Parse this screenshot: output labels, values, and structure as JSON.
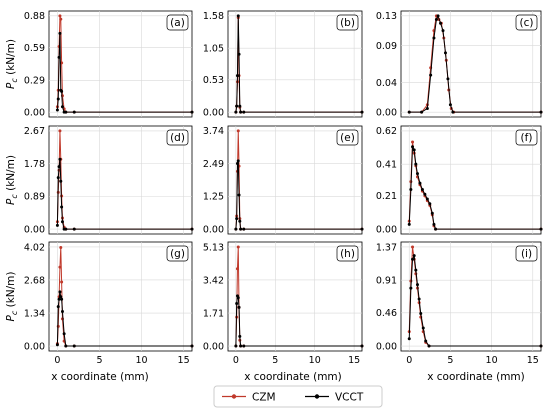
{
  "chart_data": {
    "type": "line",
    "layout": "3x3 grid of line charts with shared x axis per column",
    "xlabel": "x coordinate (mm)",
    "ylabel": "P_c (kN/m)",
    "xlim": [
      -1,
      16
    ],
    "xticks": [
      0,
      5,
      10,
      15
    ],
    "grid": true,
    "legend": {
      "placement": "bottom-center",
      "entries": [
        {
          "name": "CZM",
          "color": "#c0392b",
          "marker": "circle"
        },
        {
          "name": "VCCT",
          "color": "#000000",
          "marker": "circle"
        }
      ]
    },
    "panels": [
      {
        "label": "(a)",
        "ylim": [
          0,
          0.88
        ],
        "yticks": [
          "0.88",
          "0.59",
          "0.29",
          "0.00"
        ],
        "series": [
          {
            "name": "CZM",
            "x": [
              0.0,
              0.1,
              0.2,
              0.3,
              0.4,
              0.5,
              0.6,
              0.8,
              1.0,
              2.0,
              16.0
            ],
            "y": [
              0.05,
              0.2,
              0.6,
              0.88,
              0.85,
              0.45,
              0.15,
              0.03,
              0.0,
              0.0,
              0.0
            ]
          },
          {
            "name": "VCCT",
            "x": [
              0.0,
              0.1,
              0.2,
              0.3,
              0.4,
              0.5,
              0.6,
              0.8,
              1.0,
              2.0,
              16.0
            ],
            "y": [
              0.02,
              0.12,
              0.5,
              0.72,
              0.2,
              0.19,
              0.05,
              0.0,
              0.0,
              0.0,
              0.0
            ]
          }
        ]
      },
      {
        "label": "(b)",
        "ylim": [
          0,
          1.58
        ],
        "yticks": [
          "1.58",
          "1.05",
          "0.53",
          "0.00"
        ],
        "series": [
          {
            "name": "CZM",
            "x": [
              0.0,
              0.1,
              0.2,
              0.3,
              0.4,
              0.5,
              0.6,
              1.0,
              16.0
            ],
            "y": [
              0.0,
              0.1,
              0.5,
              1.55,
              0.6,
              0.08,
              0.0,
              0.0,
              0.0
            ]
          },
          {
            "name": "VCCT",
            "x": [
              0.0,
              0.1,
              0.2,
              0.3,
              0.4,
              0.5,
              0.6,
              1.0,
              16.0
            ],
            "y": [
              0.0,
              0.1,
              0.6,
              1.58,
              0.95,
              0.1,
              0.0,
              0.0,
              0.0
            ]
          }
        ]
      },
      {
        "label": "(c)",
        "ylim": [
          0,
          0.13
        ],
        "yticks": [
          "0.13",
          "0.09",
          "0.04",
          "0.00"
        ],
        "series": [
          {
            "name": "CZM",
            "x": [
              0.0,
              1.5,
              2.2,
              2.6,
              3.0,
              3.3,
              3.6,
              3.9,
              4.2,
              4.5,
              4.8,
              5.1,
              5.4,
              16.0
            ],
            "y": [
              0.0,
              0.0,
              0.01,
              0.06,
              0.11,
              0.13,
              0.125,
              0.12,
              0.1,
              0.07,
              0.03,
              0.005,
              0.0,
              0.0
            ]
          },
          {
            "name": "VCCT",
            "x": [
              0.0,
              1.5,
              2.2,
              2.6,
              3.0,
              3.3,
              3.5,
              3.8,
              4.1,
              4.4,
              4.7,
              5.0,
              5.3,
              16.0
            ],
            "y": [
              0.0,
              0.0,
              0.005,
              0.05,
              0.1,
              0.125,
              0.13,
              0.12,
              0.11,
              0.08,
              0.045,
              0.01,
              0.0,
              0.0
            ]
          }
        ]
      },
      {
        "label": "(d)",
        "ylim": [
          0,
          2.67
        ],
        "yticks": [
          "2.67",
          "1.78",
          "0.89",
          "0.00"
        ],
        "series": [
          {
            "name": "CZM",
            "x": [
              0.0,
              0.1,
              0.2,
              0.3,
              0.4,
              0.5,
              0.6,
              0.8,
              1.0,
              2.0,
              16.0
            ],
            "y": [
              0.2,
              1.0,
              1.6,
              2.67,
              1.9,
              0.9,
              0.3,
              0.05,
              0.0,
              0.0,
              0.0
            ]
          },
          {
            "name": "VCCT",
            "x": [
              0.0,
              0.1,
              0.2,
              0.3,
              0.4,
              0.5,
              0.6,
              0.8,
              1.0,
              2.0,
              16.0
            ],
            "y": [
              0.1,
              1.4,
              1.7,
              1.9,
              1.3,
              0.6,
              0.2,
              0.0,
              0.0,
              0.0,
              0.0
            ]
          }
        ]
      },
      {
        "label": "(e)",
        "ylim": [
          0,
          3.74
        ],
        "yticks": [
          "3.74",
          "2.49",
          "1.25",
          "0.00"
        ],
        "series": [
          {
            "name": "CZM",
            "x": [
              0.0,
              0.1,
              0.2,
              0.3,
              0.4,
              0.5,
              0.6,
              1.0,
              16.0
            ],
            "y": [
              0.0,
              0.5,
              2.2,
              3.74,
              2.4,
              0.4,
              0.0,
              0.0,
              0.0
            ]
          },
          {
            "name": "VCCT",
            "x": [
              0.0,
              0.1,
              0.2,
              0.3,
              0.4,
              0.5,
              0.6,
              1.0,
              16.0
            ],
            "y": [
              0.0,
              0.4,
              2.5,
              2.6,
              1.3,
              0.3,
              0.0,
              0.0,
              0.0
            ]
          }
        ]
      },
      {
        "label": "(f)",
        "ylim": [
          0,
          0.62
        ],
        "yticks": [
          "0.62",
          "0.41",
          "0.21",
          "0.00"
        ],
        "series": [
          {
            "name": "CZM",
            "x": [
              0.0,
              0.2,
              0.4,
              0.6,
              0.8,
              1.0,
              1.3,
              1.6,
              1.9,
              2.2,
              2.5,
              2.8,
              3.0,
              3.2,
              16.0
            ],
            "y": [
              0.05,
              0.3,
              0.55,
              0.48,
              0.4,
              0.33,
              0.28,
              0.24,
              0.21,
              0.18,
              0.15,
              0.09,
              0.02,
              0.0,
              0.0
            ]
          },
          {
            "name": "VCCT",
            "x": [
              0.0,
              0.2,
              0.4,
              0.6,
              0.8,
              1.0,
              1.3,
              1.6,
              1.9,
              2.2,
              2.5,
              2.8,
              3.0,
              3.2,
              16.0
            ],
            "y": [
              0.03,
              0.25,
              0.52,
              0.5,
              0.41,
              0.35,
              0.29,
              0.25,
              0.22,
              0.19,
              0.16,
              0.1,
              0.03,
              0.0,
              0.0
            ]
          }
        ]
      },
      {
        "label": "(g)",
        "ylim": [
          0,
          4.02
        ],
        "yticks": [
          "4.02",
          "2.68",
          "1.34",
          "0.00"
        ],
        "series": [
          {
            "name": "CZM",
            "x": [
              0.0,
              0.1,
              0.2,
              0.3,
              0.4,
              0.5,
              0.6,
              0.8,
              1.0,
              2.0,
              16.0
            ],
            "y": [
              0.1,
              0.8,
              2.0,
              3.2,
              4.0,
              2.6,
              1.1,
              0.2,
              0.0,
              0.0,
              0.0
            ]
          },
          {
            "name": "VCCT",
            "x": [
              0.0,
              0.1,
              0.2,
              0.3,
              0.4,
              0.5,
              0.6,
              0.8,
              1.0,
              2.0,
              16.0
            ],
            "y": [
              0.05,
              1.6,
              1.9,
              2.2,
              2.0,
              1.9,
              1.4,
              0.5,
              0.0,
              0.0,
              0.0
            ]
          }
        ]
      },
      {
        "label": "(h)",
        "ylim": [
          0,
          5.13
        ],
        "yticks": [
          "5.13",
          "3.42",
          "1.71",
          "0.00"
        ],
        "series": [
          {
            "name": "CZM",
            "x": [
              0.0,
              0.1,
              0.2,
              0.3,
              0.4,
              0.5,
              0.6,
              1.0,
              16.0
            ],
            "y": [
              0.0,
              1.5,
              4.0,
              5.13,
              2.0,
              0.3,
              0.0,
              0.0,
              0.0
            ]
          },
          {
            "name": "VCCT",
            "x": [
              0.0,
              0.1,
              0.2,
              0.3,
              0.4,
              0.5,
              0.6,
              1.0,
              16.0
            ],
            "y": [
              0.0,
              2.2,
              2.6,
              2.5,
              2.0,
              0.5,
              0.0,
              0.0,
              0.0
            ]
          }
        ]
      },
      {
        "label": "(i)",
        "ylim": [
          0,
          1.37
        ],
        "yticks": [
          "1.37",
          "0.91",
          "0.46",
          "0.00"
        ],
        "series": [
          {
            "name": "CZM",
            "x": [
              0.0,
              0.2,
              0.4,
              0.6,
              0.8,
              1.0,
              1.2,
              1.4,
              1.7,
              2.0,
              2.4,
              16.0
            ],
            "y": [
              0.2,
              0.9,
              1.37,
              1.2,
              1.0,
              0.8,
              0.6,
              0.4,
              0.2,
              0.05,
              0.0,
              0.0
            ]
          },
          {
            "name": "VCCT",
            "x": [
              0.0,
              0.2,
              0.4,
              0.6,
              0.8,
              1.0,
              1.2,
              1.4,
              1.7,
              2.0,
              2.4,
              16.0
            ],
            "y": [
              0.1,
              0.8,
              1.2,
              1.25,
              1.05,
              0.85,
              0.65,
              0.45,
              0.25,
              0.07,
              0.0,
              0.0
            ]
          }
        ]
      }
    ]
  }
}
